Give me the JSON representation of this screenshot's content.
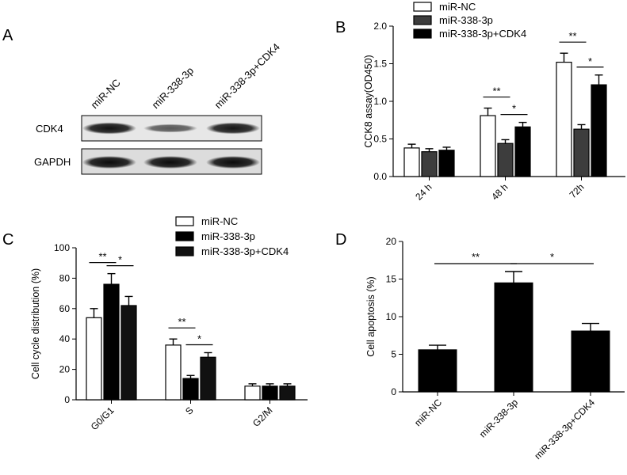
{
  "panels": {
    "a": {
      "letter": "A",
      "lanes": [
        "miR-NC",
        "miR-338-3p",
        "miR-338-3p+CDK4"
      ],
      "rows": [
        "CDK4",
        "GAPDH"
      ],
      "band_intensity": {
        "CDK4": [
          0.92,
          0.62,
          0.9
        ],
        "GAPDH": [
          0.95,
          0.95,
          0.95
        ]
      }
    },
    "b": {
      "letter": "B"
    },
    "c": {
      "letter": "C"
    },
    "d": {
      "letter": "D"
    }
  },
  "colors": {
    "dark_gray": "#3d3d3d",
    "black": "#000000",
    "white": "#ffffff"
  },
  "chart_data": [
    {
      "panel": "B",
      "type": "bar",
      "categories": [
        "24 h",
        "48 h",
        "72h"
      ],
      "ylabel": "CCK8 assay(OD450)",
      "ylim": [
        0,
        2.0
      ],
      "yticks": [
        "0.0",
        "0.5",
        "1.0",
        "1.5",
        "2.0"
      ],
      "legend_position": "top-right",
      "series": [
        {
          "name": "miR-NC",
          "fill": "#ffffff",
          "values": [
            0.38,
            0.81,
            1.52
          ],
          "errors": [
            0.05,
            0.1,
            0.12
          ]
        },
        {
          "name": "miR-338-3p",
          "fill": "#3d3d3d",
          "values": [
            0.33,
            0.44,
            0.63
          ],
          "errors": [
            0.04,
            0.05,
            0.06
          ]
        },
        {
          "name": "miR-338-3p+CDK4",
          "fill": "#000000",
          "values": [
            0.35,
            0.66,
            1.22
          ],
          "errors": [
            0.04,
            0.06,
            0.13
          ]
        }
      ],
      "significance": [
        {
          "group": 1,
          "from": 0,
          "to": 1,
          "label": "**"
        },
        {
          "group": 1,
          "from": 1,
          "to": 2,
          "label": "*"
        },
        {
          "group": 2,
          "from": 0,
          "to": 1,
          "label": "**"
        },
        {
          "group": 2,
          "from": 1,
          "to": 2,
          "label": "*"
        }
      ]
    },
    {
      "panel": "C",
      "type": "bar",
      "categories": [
        "G0/G1",
        "S",
        "G2/M"
      ],
      "ylabel": "Cell cycle distribution (%)",
      "ylim": [
        0,
        100
      ],
      "yticks": [
        "0",
        "20",
        "40",
        "60",
        "80",
        "100"
      ],
      "legend_position": "top",
      "series": [
        {
          "name": "miR-NC",
          "fill": "#ffffff",
          "values": [
            54,
            36,
            9
          ],
          "errors": [
            6,
            4,
            1.5
          ]
        },
        {
          "name": "miR-338-3p",
          "fill": "#000000",
          "values": [
            76,
            14,
            9
          ],
          "errors": [
            7,
            2,
            1.5
          ]
        },
        {
          "name": "miR-338-3p+CDK4",
          "fill": "#111111",
          "values": [
            62,
            28,
            9
          ],
          "errors": [
            6,
            3,
            1.5
          ]
        }
      ],
      "significance": [
        {
          "group": 0,
          "from": 0,
          "to": 1,
          "label": "**"
        },
        {
          "group": 0,
          "from": 1,
          "to": 2,
          "label": "*"
        },
        {
          "group": 1,
          "from": 0,
          "to": 1,
          "label": "**"
        },
        {
          "group": 1,
          "from": 1,
          "to": 2,
          "label": "*"
        }
      ]
    },
    {
      "panel": "D",
      "type": "bar",
      "categories": [
        "miR-NC",
        "miR-338-3p",
        "miR-338-3p+CDK4"
      ],
      "ylabel": "Cell apoptosis (%)",
      "ylim": [
        0,
        20
      ],
      "yticks": [
        "0",
        "5",
        "10",
        "15",
        "20"
      ],
      "values": [
        5.6,
        14.5,
        8.1
      ],
      "errors": [
        0.6,
        1.5,
        1.0
      ],
      "fill": "#000000",
      "significance": [
        {
          "from": 0,
          "to": 1,
          "label": "**"
        },
        {
          "from": 1,
          "to": 2,
          "label": "*"
        }
      ]
    }
  ]
}
